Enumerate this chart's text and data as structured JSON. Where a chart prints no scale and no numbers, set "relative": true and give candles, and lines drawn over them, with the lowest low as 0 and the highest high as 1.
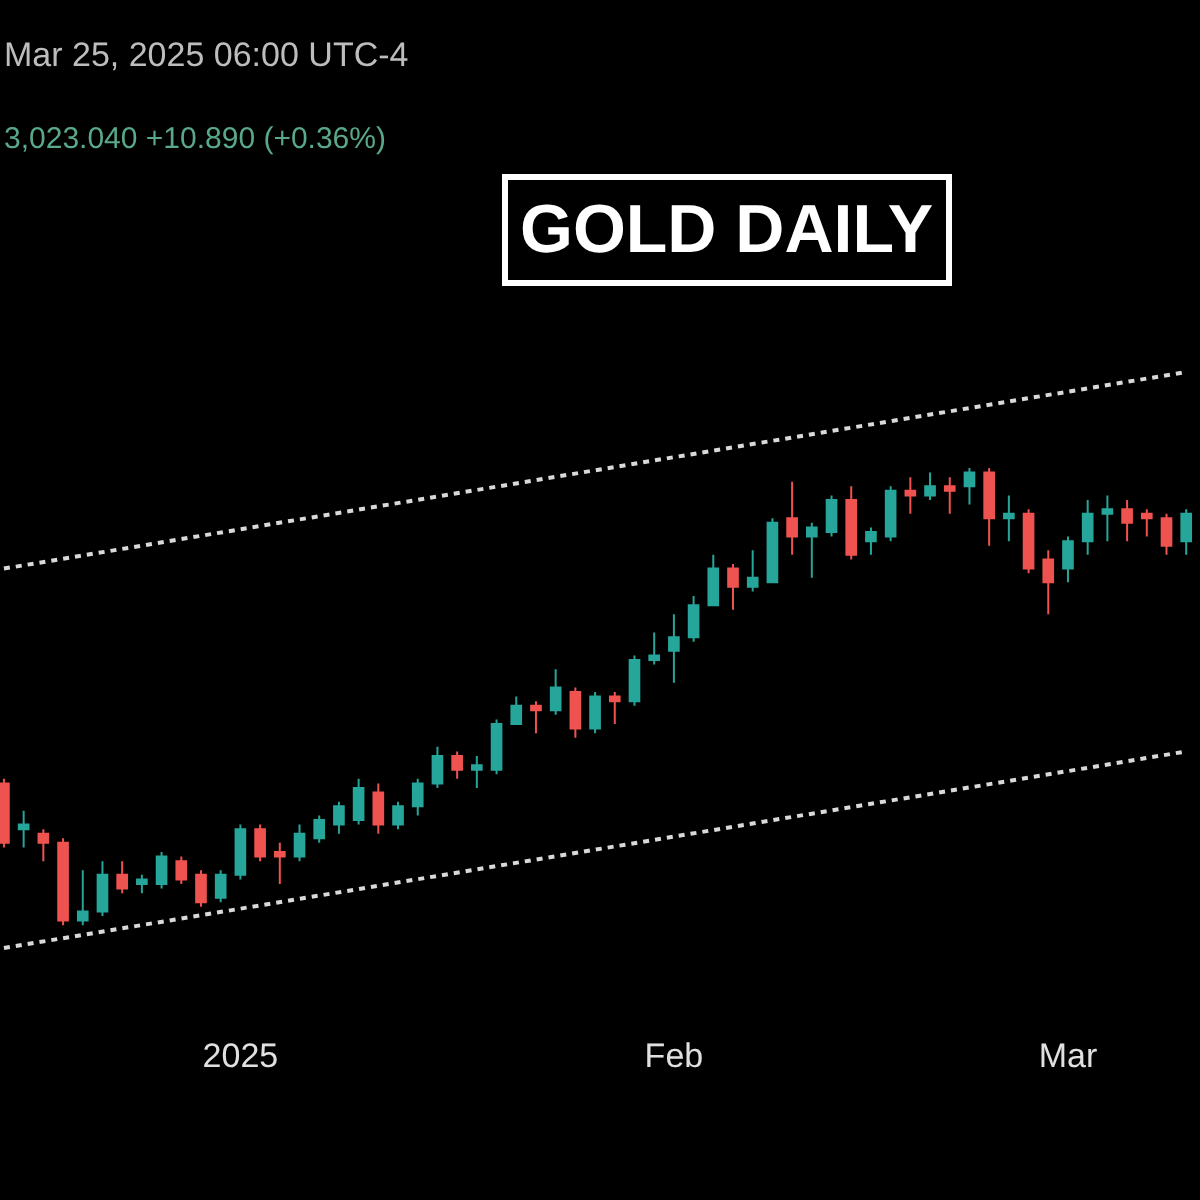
{
  "chart_data": {
    "type": "candlestick",
    "title": "GOLD DAILY",
    "relative": true,
    "annotations": [
      "Mar 25, 2025 06:00 UTC-4",
      "3,023.040 +10.890 (+0.36%)"
    ],
    "categories": [
      null,
      null,
      null,
      null,
      null,
      null,
      null,
      null,
      null,
      null,
      null,
      null,
      "2025",
      null,
      null,
      null,
      null,
      null,
      null,
      null,
      null,
      null,
      null,
      null,
      null,
      null,
      null,
      null,
      null,
      null,
      null,
      null,
      null,
      null,
      "Feb",
      null,
      null,
      null,
      null,
      null,
      null,
      null,
      null,
      null,
      null,
      null,
      null,
      null,
      null,
      null,
      null,
      null,
      null,
      null,
      "Mar",
      null,
      null,
      null,
      null,
      null,
      null
    ],
    "colors": [
      "#ef5350",
      "#26a69a",
      "#ef5350",
      "#ef5350",
      "#26a69a",
      "#26a69a",
      "#ef5350",
      "#26a69a",
      "#26a69a",
      "#ef5350",
      "#ef5350",
      "#26a69a",
      "#26a69a",
      "#ef5350",
      "#ef5350",
      "#26a69a",
      "#26a69a",
      "#26a69a",
      "#26a69a",
      "#ef5350",
      "#26a69a",
      "#26a69a",
      "#26a69a",
      "#ef5350",
      "#26a69a",
      "#26a69a",
      "#26a69a",
      "#ef5350",
      "#26a69a",
      "#ef5350",
      "#26a69a",
      "#ef5350",
      "#26a69a",
      "#26a69a",
      "#26a69a",
      "#26a69a",
      "#26a69a",
      "#ef5350",
      "#26a69a",
      "#26a69a",
      "#ef5350",
      "#26a69a",
      "#26a69a",
      "#ef5350",
      "#26a69a",
      "#26a69a",
      "#ef5350",
      "#26a69a",
      "#ef5350",
      "#26a69a",
      "#ef5350",
      "#26a69a",
      "#ef5350",
      "#ef5350",
      "#26a69a",
      "#26a69a",
      "#26a69a",
      "#ef5350",
      "#ef5350",
      "#ef5350",
      "#26a69a"
    ],
    "ohlc": [
      [
        0.31,
        0.32,
        0.17,
        0.18
      ],
      [
        0.21,
        0.25,
        0.17,
        0.22
      ],
      [
        0.2,
        0.21,
        0.14,
        0.18
      ],
      [
        0.18,
        0.19,
        0,
        0.01
      ],
      [
        0.01,
        0.12,
        0,
        0.03
      ],
      [
        0.03,
        0.14,
        0.02,
        0.11
      ],
      [
        0.11,
        0.14,
        0.07,
        0.08
      ],
      [
        0.09,
        0.11,
        0.07,
        0.1
      ],
      [
        0.09,
        0.16,
        0.08,
        0.15
      ],
      [
        0.14,
        0.15,
        0.09,
        0.1
      ],
      [
        0.11,
        0.12,
        0.04,
        0.05
      ],
      [
        0.06,
        0.12,
        0.05,
        0.11
      ],
      [
        0.11,
        0.22,
        0.1,
        0.21
      ],
      [
        0.21,
        0.22,
        0.14,
        0.15
      ],
      [
        0.16,
        0.18,
        0.09,
        0.15
      ],
      [
        0.15,
        0.22,
        0.14,
        0.2
      ],
      [
        0.19,
        0.24,
        0.18,
        0.23
      ],
      [
        0.22,
        0.27,
        0.2,
        0.26
      ],
      [
        0.23,
        0.32,
        0.22,
        0.3
      ],
      [
        0.29,
        0.31,
        0.2,
        0.22
      ],
      [
        0.22,
        0.27,
        0.21,
        0.26
      ],
      [
        0.26,
        0.32,
        0.24,
        0.31
      ],
      [
        0.31,
        0.39,
        0.3,
        0.37
      ],
      [
        0.37,
        0.38,
        0.32,
        0.34
      ],
      [
        0.34,
        0.37,
        0.3,
        0.35
      ],
      [
        0.34,
        0.45,
        0.33,
        0.44
      ],
      [
        0.44,
        0.5,
        0.44,
        0.48
      ],
      [
        0.48,
        0.49,
        0.42,
        0.47
      ],
      [
        0.47,
        0.56,
        0.46,
        0.52
      ],
      [
        0.51,
        0.52,
        0.41,
        0.43
      ],
      [
        0.43,
        0.51,
        0.42,
        0.5
      ],
      [
        0.5,
        0.51,
        0.44,
        0.49
      ],
      [
        0.49,
        0.59,
        0.48,
        0.58
      ],
      [
        0.58,
        0.64,
        0.57,
        0.59
      ],
      [
        0.6,
        0.68,
        0.53,
        0.63
      ],
      [
        0.63,
        0.72,
        0.62,
        0.7
      ],
      [
        0.7,
        0.81,
        0.7,
        0.78
      ],
      [
        0.78,
        0.79,
        0.69,
        0.74
      ],
      [
        0.74,
        0.82,
        0.73,
        0.76
      ],
      [
        0.75,
        0.89,
        0.75,
        0.88
      ],
      [
        0.89,
        0.97,
        0.81,
        0.85
      ],
      [
        0.85,
        0.88,
        0.76,
        0.87
      ],
      [
        0.86,
        0.94,
        0.85,
        0.93
      ],
      [
        0.93,
        0.96,
        0.8,
        0.81
      ],
      [
        0.84,
        0.87,
        0.81,
        0.86
      ],
      [
        0.85,
        0.96,
        0.84,
        0.95
      ],
      [
        0.95,
        0.98,
        0.9,
        0.94
      ],
      [
        0.94,
        0.99,
        0.93,
        0.96
      ],
      [
        0.96,
        0.98,
        0.9,
        0.95
      ],
      [
        0.96,
        1.0,
        0.92,
        0.99
      ],
      [
        0.99,
        1.0,
        0.83,
        0.89
      ],
      [
        0.89,
        0.94,
        0.84,
        0.9
      ],
      [
        0.9,
        0.91,
        0.77,
        0.78
      ],
      [
        0.8,
        0.82,
        0.68,
        0.75
      ],
      [
        0.78,
        0.85,
        0.75,
        0.84
      ],
      [
        0.84,
        0.93,
        0.81,
        0.9
      ],
      [
        0.9,
        0.94,
        0.84,
        0.91
      ],
      [
        0.91,
        0.93,
        0.84,
        0.88
      ],
      [
        0.9,
        0.91,
        0.85,
        0.89
      ],
      [
        0.89,
        0.9,
        0.81,
        0.83
      ],
      [
        0.84,
        0.91,
        0.81,
        0.9
      ]
    ],
    "series": [
      {
        "type": "line",
        "color": "#d9d9d9",
        "line_style": "dotted",
        "values": [
          0.78,
          null,
          null,
          null,
          null,
          null,
          null,
          null,
          null,
          null,
          null,
          null,
          null,
          null,
          null,
          null,
          null,
          null,
          null,
          null,
          null,
          null,
          null,
          null,
          null,
          null,
          null,
          null,
          null,
          null,
          null,
          null,
          null,
          null,
          null,
          null,
          null,
          null,
          null,
          null,
          null,
          null,
          null,
          null,
          null,
          null,
          null,
          null,
          null,
          null,
          null,
          null,
          null,
          null,
          null,
          null,
          null,
          null,
          null,
          null,
          1.21
        ]
      },
      {
        "type": "line",
        "color": "#d9d9d9",
        "line_style": "dotted",
        "values": [
          -0.05,
          null,
          null,
          null,
          null,
          null,
          null,
          null,
          null,
          null,
          null,
          null,
          null,
          null,
          null,
          null,
          null,
          null,
          null,
          null,
          null,
          null,
          null,
          null,
          null,
          null,
          null,
          null,
          null,
          null,
          null,
          null,
          null,
          null,
          null,
          null,
          null,
          null,
          null,
          null,
          null,
          null,
          null,
          null,
          null,
          null,
          null,
          null,
          null,
          null,
          null,
          null,
          null,
          null,
          null,
          null,
          null,
          null,
          null,
          null,
          0.38
        ]
      }
    ],
    "grid": false
  }
}
